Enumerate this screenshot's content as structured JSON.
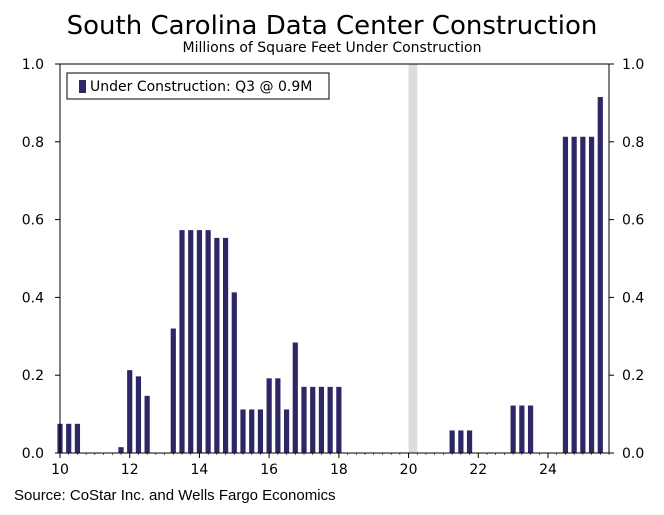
{
  "chart_data": {
    "type": "bar",
    "title": "South Carolina Data Center Construction",
    "subtitle": "Millions of Square Feet Under Construction",
    "legend": "Under Construction: Q3 @ 0.9M",
    "source": "Source: CoStar Inc. and Wells Fargo Economics",
    "x_range": [
      10,
      25.75
    ],
    "ylim": [
      0,
      1.0
    ],
    "x_ticks": [
      "10",
      "12",
      "14",
      "16",
      "18",
      "20",
      "22",
      "24"
    ],
    "y_ticks": [
      "0.0",
      "0.2",
      "0.4",
      "0.6",
      "0.8",
      "1.0"
    ],
    "recession_shading": [
      20.0,
      20.25
    ],
    "series": [
      {
        "name": "Under Construction",
        "color": "#2e2766",
        "x": [
          10.0,
          10.25,
          10.5,
          11.75,
          12.0,
          12.25,
          12.5,
          13.25,
          13.5,
          13.75,
          14.0,
          14.25,
          14.5,
          14.75,
          15.0,
          15.25,
          15.5,
          15.75,
          16.0,
          16.25,
          16.5,
          16.75,
          17.0,
          17.25,
          17.5,
          17.75,
          18.0,
          21.25,
          21.5,
          21.75,
          23.0,
          23.25,
          23.5,
          24.5,
          24.75,
          25.0,
          25.25,
          25.5
        ],
        "values": [
          0.075,
          0.075,
          0.075,
          0.015,
          0.213,
          0.197,
          0.147,
          0.32,
          0.573,
          0.573,
          0.573,
          0.573,
          0.553,
          0.553,
          0.413,
          0.112,
          0.112,
          0.112,
          0.192,
          0.192,
          0.112,
          0.284,
          0.17,
          0.17,
          0.17,
          0.17,
          0.17,
          0.058,
          0.058,
          0.058,
          0.122,
          0.122,
          0.122,
          0.813,
          0.813,
          0.813,
          0.813,
          0.915
        ]
      }
    ],
    "colors": {
      "bar": "#2e2766",
      "shade": "#dcdcdc",
      "axis": "#000000"
    }
  }
}
